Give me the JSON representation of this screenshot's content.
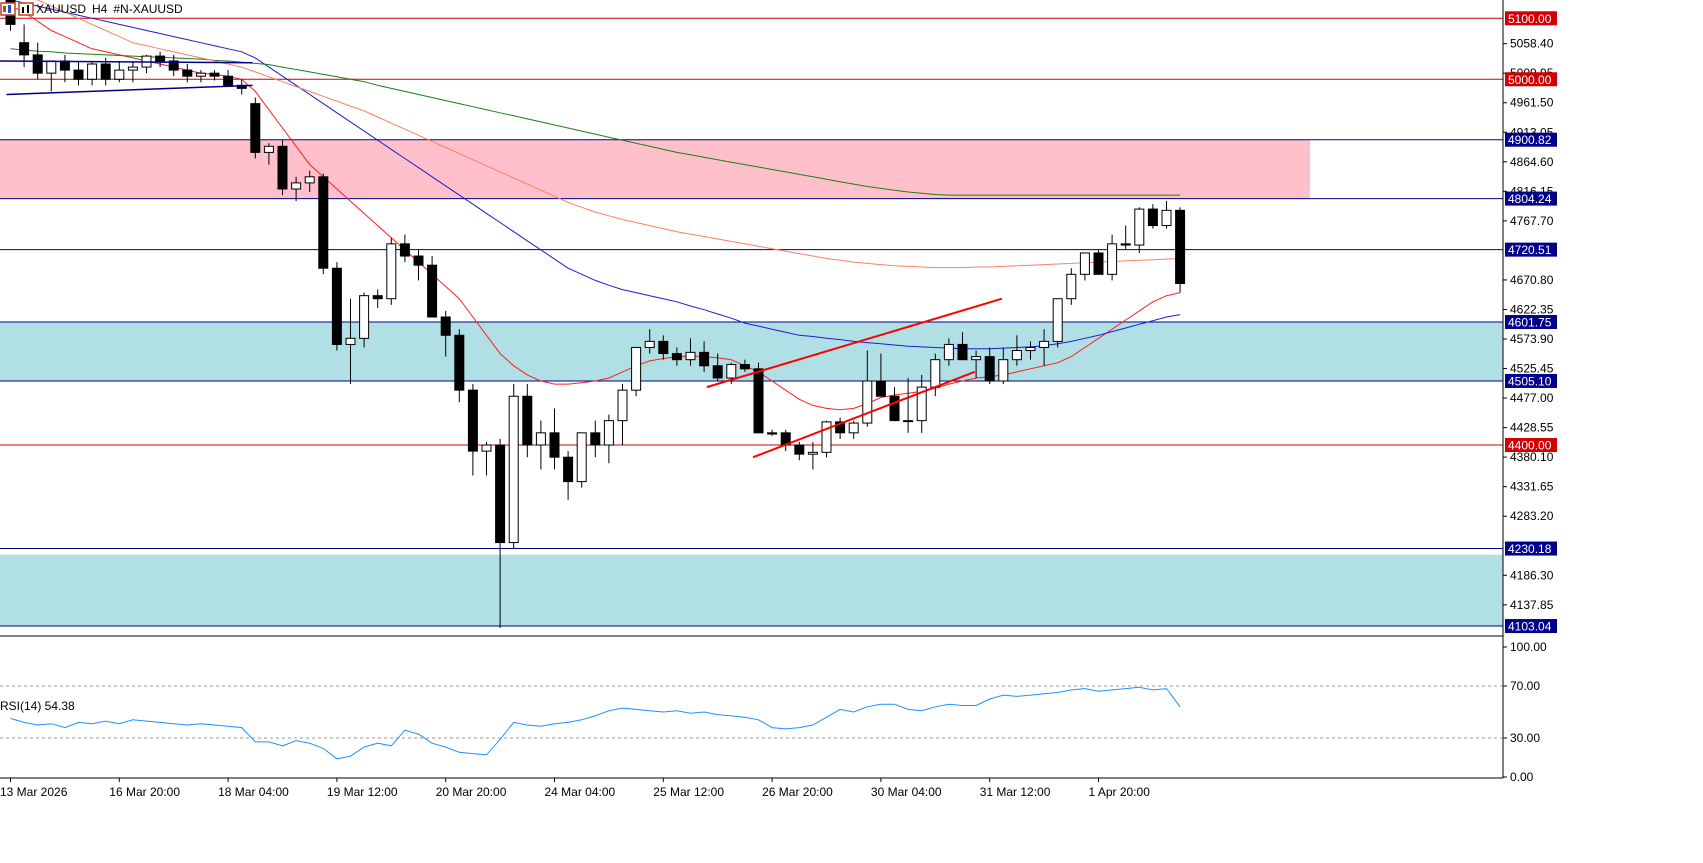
{
  "header": {
    "symbol": "XAUUSD",
    "timeframe": "H4",
    "instrument": "#N-XAUUSD"
  },
  "colors": {
    "candle_bull_fill": "#ffffff",
    "candle_bear_fill": "#000000",
    "ma_fast": "#ff2020",
    "ma_mid": "#1e1ec8",
    "ma_slow": "#1a7f1a",
    "ma_orange": "#ff7f60",
    "zone_red": "#ffc0cb",
    "zone_blue": "#b0dfe5",
    "level_red": "#d20000",
    "level_blue": "#00008b",
    "rsi_line": "#1e90ff",
    "trend_red": "#ff0000"
  },
  "chart_data": [
    {
      "type": "candlestick",
      "symbol": "XAUUSD",
      "timeframe": "H4",
      "ylim": [
        4090,
        5130
      ],
      "y_ticks": [
        "5058.40",
        "5009.95",
        "4961.50",
        "4913.05",
        "4864.60",
        "4816.15",
        "4767.70",
        "4670.80",
        "4622.35",
        "4573.90",
        "4525.45",
        "4477.00",
        "4428.55",
        "4380.10",
        "4331.65",
        "4283.20",
        "4186.30",
        "4137.85"
      ],
      "x_labels": [
        "13 Mar 2026",
        "16 Mar 20:00",
        "18 Mar 04:00",
        "19 Mar 12:00",
        "20 Mar 20:00",
        "24 Mar 04:00",
        "25 Mar 12:00",
        "26 Mar 20:00",
        "30 Mar 04:00",
        "31 Mar 12:00",
        "1 Apr 20:00"
      ],
      "x_label_index": [
        0,
        8,
        16,
        24,
        32,
        40,
        48,
        56,
        64,
        72,
        80
      ],
      "ohlc": [
        [
          5130,
          5140,
          5080,
          5090
        ],
        [
          5060,
          5090,
          5020,
          5040
        ],
        [
          5040,
          5060,
          5000,
          5010
        ],
        [
          5010,
          5025,
          4980,
          5030
        ],
        [
          5030,
          5040,
          4995,
          5015
        ],
        [
          5015,
          5030,
          4990,
          5000
        ],
        [
          5000,
          5030,
          4990,
          5025
        ],
        [
          5025,
          5035,
          4990,
          5000
        ],
        [
          5000,
          5030,
          4995,
          5015
        ],
        [
          5015,
          5030,
          4995,
          5020
        ],
        [
          5020,
          5040,
          5010,
          5038
        ],
        [
          5038,
          5045,
          5020,
          5030
        ],
        [
          5030,
          5040,
          5005,
          5015
        ],
        [
          5015,
          5025,
          4995,
          5005
        ],
        [
          5005,
          5015,
          4995,
          5010
        ],
        [
          5010,
          5015,
          4998,
          5005
        ],
        [
          5005,
          5015,
          4995,
          4990
        ],
        [
          4990,
          5000,
          4975,
          4985
        ],
        [
          4960,
          4970,
          4870,
          4880
        ],
        [
          4880,
          4895,
          4860,
          4890
        ],
        [
          4890,
          4900,
          4810,
          4820
        ],
        [
          4820,
          4840,
          4800,
          4830
        ],
        [
          4830,
          4850,
          4815,
          4840
        ],
        [
          4840,
          4845,
          4680,
          4690
        ],
        [
          4690,
          4700,
          4555,
          4565
        ],
        [
          4565,
          4640,
          4500,
          4575
        ],
        [
          4575,
          4650,
          4560,
          4645
        ],
        [
          4645,
          4655,
          4625,
          4640
        ],
        [
          4640,
          4740,
          4630,
          4730
        ],
        [
          4730,
          4745,
          4700,
          4710
        ],
        [
          4710,
          4720,
          4670,
          4695
        ],
        [
          4695,
          4710,
          4620,
          4610
        ],
        [
          4610,
          4620,
          4545,
          4580
        ],
        [
          4580,
          4590,
          4470,
          4490
        ],
        [
          4490,
          4500,
          4350,
          4390
        ],
        [
          4390,
          4405,
          4350,
          4400
        ],
        [
          4400,
          4410,
          4100,
          4240
        ],
        [
          4240,
          4500,
          4230,
          4480
        ],
        [
          4480,
          4500,
          4380,
          4400
        ],
        [
          4400,
          4440,
          4360,
          4420
        ],
        [
          4420,
          4460,
          4360,
          4380
        ],
        [
          4380,
          4390,
          4310,
          4340
        ],
        [
          4340,
          4420,
          4330,
          4420
        ],
        [
          4420,
          4440,
          4380,
          4400
        ],
        [
          4400,
          4450,
          4370,
          4440
        ],
        [
          4440,
          4500,
          4400,
          4490
        ],
        [
          4490,
          4560,
          4480,
          4560
        ],
        [
          4560,
          4590,
          4550,
          4570
        ],
        [
          4570,
          4580,
          4540,
          4550
        ],
        [
          4550,
          4560,
          4530,
          4540
        ],
        [
          4540,
          4575,
          4530,
          4552
        ],
        [
          4552,
          4570,
          4520,
          4530
        ],
        [
          4530,
          4550,
          4505,
          4510
        ],
        [
          4510,
          4535,
          4500,
          4532
        ],
        [
          4532,
          4540,
          4520,
          4525
        ],
        [
          4525,
          4535,
          4420,
          4420
        ],
        [
          4420,
          4425,
          4415,
          4418
        ],
        [
          4420,
          4425,
          4390,
          4400
        ],
        [
          4400,
          4405,
          4375,
          4385
        ],
        [
          4385,
          4405,
          4360,
          4388
        ],
        [
          4388,
          4440,
          4380,
          4438
        ],
        [
          4438,
          4445,
          4410,
          4420
        ],
        [
          4420,
          4440,
          4410,
          4436
        ],
        [
          4436,
          4555,
          4430,
          4505
        ],
        [
          4505,
          4550,
          4480,
          4480
        ],
        [
          4480,
          4495,
          4440,
          4440
        ],
        [
          4440,
          4510,
          4420,
          4440
        ],
        [
          4440,
          4515,
          4420,
          4495
        ],
        [
          4495,
          4550,
          4480,
          4540
        ],
        [
          4540,
          4575,
          4530,
          4565
        ],
        [
          4565,
          4585,
          4540,
          4540
        ],
        [
          4540,
          4555,
          4510,
          4545
        ],
        [
          4545,
          4560,
          4500,
          4505
        ],
        [
          4505,
          4560,
          4500,
          4540
        ],
        [
          4540,
          4580,
          4530,
          4555
        ],
        [
          4555,
          4570,
          4540,
          4560
        ],
        [
          4560,
          4590,
          4530,
          4570
        ],
        [
          4570,
          4640,
          4560,
          4640
        ],
        [
          4640,
          4690,
          4630,
          4680
        ],
        [
          4680,
          4710,
          4670,
          4715
        ],
        [
          4715,
          4720,
          4680,
          4680
        ],
        [
          4680,
          4745,
          4670,
          4730
        ],
        [
          4730,
          4760,
          4720,
          4728
        ],
        [
          4728,
          4790,
          4715,
          4787
        ],
        [
          4787,
          4795,
          4755,
          4760
        ],
        [
          4760,
          4800,
          4755,
          4785
        ],
        [
          4785,
          4790,
          4650,
          4665
        ]
      ],
      "series": [
        {
          "name": "",
          "color": "ma_fast",
          "values": [
            5120,
            5110,
            5095,
            5080,
            5070,
            5060,
            5050,
            5045,
            5040,
            5035,
            5030,
            5025,
            5020,
            5015,
            5010,
            5008,
            5005,
            5000,
            4980,
            4950,
            4920,
            4890,
            4860,
            4840,
            4820,
            4800,
            4780,
            4760,
            4740,
            4720,
            4700,
            4680,
            4660,
            4640,
            4610,
            4580,
            4550,
            4530,
            4515,
            4505,
            4500,
            4500,
            4502,
            4505,
            4510,
            4520,
            4530,
            4538,
            4542,
            4545,
            4546,
            4545,
            4543,
            4540,
            4530,
            4520,
            4505,
            4490,
            4475,
            4465,
            4460,
            4458,
            4460,
            4468,
            4478,
            4482,
            4485,
            4488,
            4493,
            4500,
            4505,
            4510,
            4512,
            4515,
            4520,
            4525,
            4530,
            4535,
            4545,
            4560,
            4575,
            4590,
            4605,
            4620,
            4635,
            4645,
            4650
          ]
        },
        {
          "name": "",
          "color": "ma_mid",
          "values": [
            5130,
            5125,
            5120,
            5115,
            5110,
            5105,
            5100,
            5095,
            5090,
            5085,
            5080,
            5075,
            5070,
            5065,
            5060,
            5055,
            5050,
            5045,
            5035,
            5020,
            5005,
            4990,
            4975,
            4960,
            4945,
            4930,
            4915,
            4900,
            4885,
            4870,
            4855,
            4840,
            4825,
            4810,
            4795,
            4780,
            4765,
            4750,
            4735,
            4720,
            4705,
            4690,
            4680,
            4670,
            4662,
            4655,
            4650,
            4645,
            4640,
            4635,
            4628,
            4622,
            4615,
            4608,
            4600,
            4595,
            4590,
            4585,
            4580,
            4578,
            4575,
            4573,
            4570,
            4568,
            4566,
            4564,
            4562,
            4561,
            4560,
            4559,
            4558,
            4558,
            4558,
            4559,
            4560,
            4561,
            4563,
            4566,
            4570,
            4575,
            4580,
            4586,
            4592,
            4598,
            4604,
            4610,
            4614
          ]
        },
        {
          "name": "",
          "color": "ma_slow",
          "values": [
            5050,
            5048,
            5046,
            5045,
            5043,
            5042,
            5041,
            5040,
            5039,
            5038,
            5037,
            5036,
            5035,
            5034,
            5033,
            5031,
            5030,
            5028,
            5026,
            5024,
            5020,
            5016,
            5012,
            5008,
            5004,
            5000,
            4996,
            4990,
            4985,
            4980,
            4975,
            4970,
            4965,
            4960,
            4955,
            4950,
            4945,
            4940,
            4935,
            4930,
            4925,
            4920,
            4915,
            4910,
            4905,
            4900,
            4895,
            4890,
            4885,
            4880,
            4876,
            4872,
            4868,
            4864,
            4860,
            4856,
            4852,
            4848,
            4844,
            4840,
            4836,
            4832,
            4828,
            4824,
            4821,
            4818,
            4815,
            4813,
            4811,
            4810,
            4810,
            4810,
            4810,
            4810,
            4810,
            4810,
            4810,
            4810,
            4810,
            4810,
            4810,
            4810,
            4810,
            4810,
            4810,
            4810,
            4810
          ]
        },
        {
          "name": "",
          "color": "ma_orange",
          "values": [
            5150,
            5140,
            5130,
            5120,
            5110,
            5100,
            5090,
            5080,
            5070,
            5060,
            5055,
            5050,
            5045,
            5040,
            5035,
            5030,
            5025,
            5020,
            5012,
            5004,
            4996,
            4988,
            4980,
            4972,
            4964,
            4956,
            4948,
            4938,
            4928,
            4918,
            4908,
            4898,
            4888,
            4878,
            4868,
            4858,
            4848,
            4838,
            4828,
            4818,
            4808,
            4798,
            4790,
            4782,
            4776,
            4770,
            4765,
            4760,
            4755,
            4750,
            4746,
            4742,
            4738,
            4734,
            4730,
            4726,
            4722,
            4718,
            4714,
            4710,
            4706,
            4703,
            4700,
            4698,
            4696,
            4694,
            4693,
            4692,
            4691,
            4691,
            4691,
            4692,
            4692,
            4693,
            4694,
            4695,
            4696,
            4697,
            4698,
            4699,
            4700,
            4701,
            4702,
            4703,
            4704,
            4705,
            4706
          ]
        }
      ],
      "levels": [
        {
          "value": "5100.00",
          "price": 5100,
          "color": "level_red"
        },
        {
          "value": "5000.00",
          "price": 5000,
          "color": "level_red"
        },
        {
          "value": "4900.82",
          "price": 4900.82,
          "color": "level_blue"
        },
        {
          "value": "4804.24",
          "price": 4804.24,
          "color": "level_blue"
        },
        {
          "value": "4720.51",
          "price": 4720.51,
          "color": "level_blue"
        },
        {
          "value": "4601.75",
          "price": 4601.75,
          "color": "level_blue"
        },
        {
          "value": "4505.10",
          "price": 4505.1,
          "color": "level_blue"
        },
        {
          "value": "4400.00",
          "price": 4400,
          "color": "level_red"
        },
        {
          "value": "4230.18",
          "price": 4230.18,
          "color": "level_blue"
        },
        {
          "value": "4103.04",
          "price": 4103.04,
          "color": "level_blue"
        }
      ],
      "zones": [
        {
          "from": 4804.24,
          "to": 4900.82,
          "color": "zone_red",
          "end_index": 110
        },
        {
          "from": 4505.1,
          "to": 4601.75,
          "color": "zone_blue",
          "end_index": 999
        },
        {
          "from": 4103.04,
          "to": 4220,
          "color": "zone_blue",
          "end_index": 999
        }
      ],
      "trendlines": [
        {
          "x1": -1.2,
          "y1": 5030,
          "x2": 17.8,
          "y2": 5027,
          "color": "level_blue"
        },
        {
          "x1": -0.3,
          "y1": 4975,
          "x2": 17.8,
          "y2": 4990,
          "color": "level_blue"
        },
        {
          "x1": 51.2,
          "y1": 4495,
          "x2": 72.9,
          "y2": 4640,
          "color": "trend_red"
        },
        {
          "x1": 54.6,
          "y1": 4380,
          "x2": 70.9,
          "y2": 4520,
          "color": "trend_red"
        }
      ]
    },
    {
      "type": "line",
      "title": "RSI(14) 54.38",
      "ylim": [
        0,
        100
      ],
      "y_ticks": [
        "100.00",
        "70.00",
        "30.00",
        "0.00"
      ],
      "guides": [
        70,
        30
      ],
      "values": [
        45,
        42,
        40,
        41,
        38,
        42,
        41,
        43,
        41,
        44,
        43,
        42,
        41,
        40,
        41,
        40,
        39,
        38,
        27,
        27,
        24,
        28,
        26,
        22,
        14,
        16,
        23,
        26,
        24,
        36,
        33,
        26,
        23,
        19,
        18,
        17,
        29,
        42,
        40,
        39,
        41,
        42,
        44,
        47,
        51,
        53,
        52,
        51,
        50,
        51,
        49,
        50,
        48,
        47,
        46,
        44,
        38,
        37,
        38,
        40,
        46,
        52,
        50,
        54,
        56,
        56,
        52,
        51,
        54,
        56,
        55,
        55,
        60,
        63,
        62,
        63,
        64,
        65,
        67,
        68,
        66,
        67,
        68,
        69,
        67,
        68,
        54
      ]
    }
  ]
}
